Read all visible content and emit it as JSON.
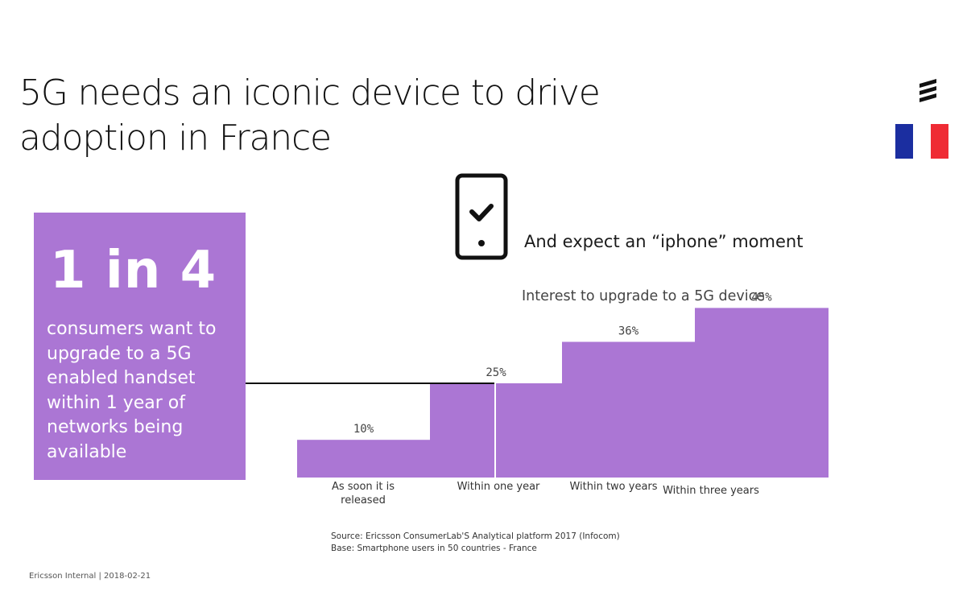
{
  "title": {
    "line1": "5G needs an iconic device to drive",
    "line2": "adoption in France"
  },
  "colors": {
    "accent": "#ab76d4",
    "flag_blue": "#1b2ea0",
    "flag_red": "#ef2b34"
  },
  "stat": {
    "big": "1 in 4",
    "text": "consumers want to upgrade to a 5G enabled handset within 1 year of networks being available"
  },
  "headline": "And expect an “iphone” moment",
  "chart_data": {
    "type": "bar",
    "title": "Interest to upgrade to a 5G device",
    "categories": [
      "As soon it is released",
      "Within one year",
      "Within two years",
      "Within three years"
    ],
    "values": [
      10,
      25,
      36,
      45
    ],
    "value_labels": [
      "10%",
      "25%",
      "36%",
      "45%"
    ],
    "ylim": [
      0,
      50
    ],
    "xlabel": "",
    "ylabel": ""
  },
  "source": {
    "line1": "Source: Ericsson ConsumerLab'S Analytical platform 2017 (Infocom)",
    "line2": "Base: Smartphone users in 50 countries - France"
  },
  "footer": "Ericsson Internal  |  2018-02-21",
  "icons": {
    "logo": "ericsson-logo-icon",
    "flag": "france-flag-icon",
    "phone": "smartphone-check-icon"
  }
}
